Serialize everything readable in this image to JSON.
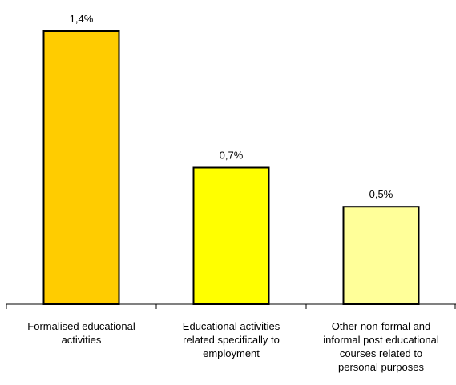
{
  "chart_data": {
    "type": "bar",
    "title": "",
    "xlabel": "",
    "ylabel": "",
    "ylim": [
      0,
      1.5
    ],
    "grid": false,
    "categories": [
      [
        "Formalised educational",
        "activities"
      ],
      [
        "Educational activities",
        "related specifically to",
        "employment"
      ],
      [
        "Other non-formal and",
        "informal post educational",
        "courses related to",
        "personal purposes"
      ]
    ],
    "values": [
      1.4,
      0.7,
      0.5
    ],
    "value_labels": [
      "1,4%",
      "0,7%",
      "0,5%"
    ],
    "colors": [
      "#FFCC00",
      "#FFFF00",
      "#FFFF99"
    ],
    "bar_stroke": "#000000",
    "axis_color": "#000000"
  }
}
